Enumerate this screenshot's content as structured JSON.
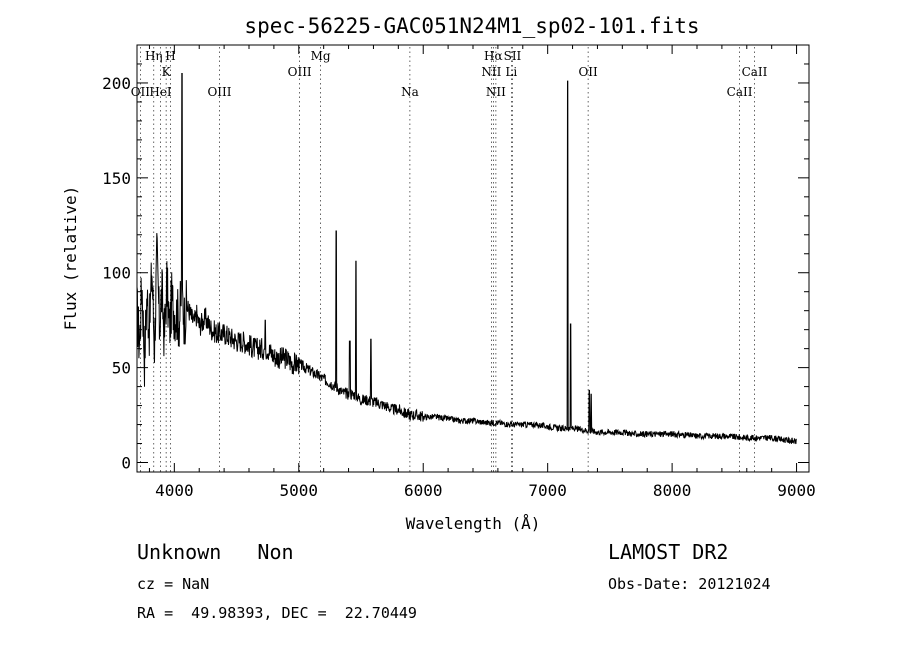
{
  "chart_data": {
    "type": "line",
    "title": "spec-56225-GAC051N24M1_sp02-101.fits",
    "xlabel": "Wavelength (Å)",
    "ylabel": "Flux (relative)",
    "xlim": [
      3700,
      9100
    ],
    "ylim": [
      -5,
      220
    ],
    "xticks": [
      4000,
      5000,
      6000,
      7000,
      8000,
      9000
    ],
    "yticks": [
      0,
      50,
      100,
      150,
      200
    ],
    "grid": false,
    "series": [
      {
        "x": [
          3700,
          3720,
          3740,
          3760,
          3780,
          3800,
          3820,
          3840,
          3860,
          3880,
          3900,
          3920,
          3940,
          3960,
          3980,
          4000,
          4020,
          4040,
          4060,
          4080,
          4100,
          4120,
          4140,
          4160,
          4180,
          4200,
          4250,
          4300,
          4350,
          4400,
          4450,
          4500,
          4550,
          4600,
          4650,
          4700,
          4750,
          4800,
          4850,
          4900,
          4950,
          5000,
          5050,
          5100,
          5150,
          5200,
          5250,
          5300,
          5350,
          5400,
          5450,
          5500,
          5550,
          5600,
          5650,
          5700,
          5750,
          5800,
          5850,
          5900,
          5950,
          6000,
          6100,
          6200,
          6300,
          6400,
          6500,
          6600,
          6700,
          6800,
          6900,
          7000,
          7100,
          7200,
          7300,
          7400,
          7500,
          7600,
          7700,
          7800,
          7900,
          8000,
          8200,
          8400,
          8600,
          8800,
          9000
        ],
        "y": [
          80,
          62,
          95,
          55,
          88,
          70,
          102,
          60,
          110,
          72,
          90,
          66,
          95,
          70,
          86,
          80,
          78,
          75,
          90,
          76,
          82,
          80,
          76,
          74,
          78,
          72,
          76,
          70,
          68,
          68,
          66,
          64,
          64,
          62,
          60,
          60,
          60,
          56,
          55,
          55,
          52,
          52,
          50,
          48,
          46,
          44,
          42,
          40,
          37,
          36,
          36,
          33,
          33,
          32,
          31,
          30,
          28,
          28,
          26,
          25,
          25,
          24,
          24,
          23,
          22,
          22,
          21,
          21,
          20,
          20,
          20,
          19,
          18,
          18,
          17,
          16,
          16,
          16,
          15,
          15,
          15,
          15,
          14,
          14,
          13,
          13,
          11
        ]
      }
    ],
    "emission_lines": [
      {
        "x": 4062,
        "y": 205
      },
      {
        "x": 4730,
        "y": 75
      },
      {
        "x": 5300,
        "y": 122
      },
      {
        "x": 5410,
        "y": 64
      },
      {
        "x": 5460,
        "y": 106
      },
      {
        "x": 5580,
        "y": 65
      },
      {
        "x": 7160,
        "y": 201
      },
      {
        "x": 7185,
        "y": 73
      },
      {
        "x": 7335,
        "y": 38
      },
      {
        "x": 7350,
        "y": 36
      }
    ],
    "spectral_lines": [
      {
        "label": "OII",
        "x": 3727,
        "row": 3
      },
      {
        "label": "Hη",
        "x": 3835,
        "row": 1
      },
      {
        "label": "HeI",
        "x": 3889,
        "row": 3
      },
      {
        "label": "K",
        "x": 3934,
        "row": 2
      },
      {
        "label": "H",
        "x": 3969,
        "row": 1
      },
      {
        "label": "OIII",
        "x": 4363,
        "row": 3
      },
      {
        "label": "OIII",
        "x": 5007,
        "row": 2
      },
      {
        "label": "Mg",
        "x": 5175,
        "row": 1
      },
      {
        "label": "Na",
        "x": 5893,
        "row": 3
      },
      {
        "label": "Hα",
        "x": 6563,
        "row": 1
      },
      {
        "label": "NII",
        "x": 6548,
        "row": 2
      },
      {
        "label": "NII",
        "x": 6584,
        "row": 3
      },
      {
        "label": "Li",
        "x": 6708,
        "row": 2
      },
      {
        "label": "OII",
        "x": 7325,
        "row": 2
      },
      {
        "label": "SII",
        "x": 6717,
        "row": 0
      },
      {
        "label": "CaII",
        "x": 8542,
        "row": 3
      },
      {
        "label": "CaII",
        "x": 8662,
        "row": 2
      }
    ]
  },
  "info": {
    "class_text": "Unknown   Non",
    "survey": "LAMOST DR2",
    "cz": "cz = NaN",
    "obs_date": "Obs-Date: 20121024",
    "coords": "RA =  49.98393, DEC =  22.70449"
  }
}
